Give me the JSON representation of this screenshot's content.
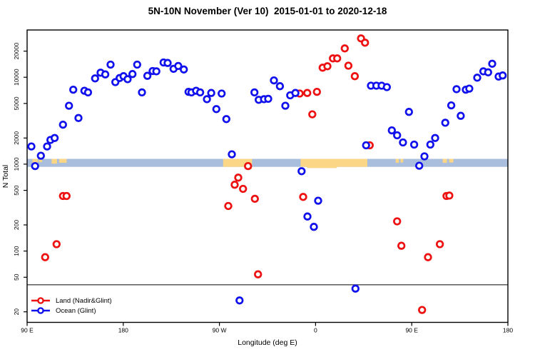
{
  "title": "5N-10N November (Ver 10)  2015-01-01 to 2020-12-18",
  "legend": {
    "items": [
      {
        "label": "Land (Nadir&Glint)",
        "color": "#ee1111"
      },
      {
        "label": "Ocean (Glint)",
        "color": "#1111ee"
      }
    ]
  },
  "chart_data": {
    "type": "scatter",
    "title": "5N-10N November (Ver 10)  2015-01-01 to 2020-12-18",
    "xlabel": "Longitude (deg E)",
    "ylabel": "N Total",
    "grid": false,
    "legend_position": "bottom-left",
    "x_axis": {
      "note": "longitude axis wraps eastward from 90E through 180, 90W, 0, 90E to 180; stored as continuous 90..540 deg",
      "range": [
        90,
        540
      ],
      "ticks": [
        {
          "pos": 90,
          "label": "90 E"
        },
        {
          "pos": 180,
          "label": "180"
        },
        {
          "pos": 270,
          "label": "90 W"
        },
        {
          "pos": 360,
          "label": "0"
        },
        {
          "pos": 450,
          "label": "90 E"
        },
        {
          "pos": 540,
          "label": "180"
        }
      ]
    },
    "y_axis": {
      "scale": "log",
      "range": [
        15,
        35000
      ],
      "ticks": [
        20,
        50,
        100,
        200,
        500,
        1000,
        2000,
        5000,
        10000,
        20000
      ]
    },
    "threshold_line": {
      "value": 41,
      "color": "#4a4a4a"
    },
    "band": {
      "comment": "horizontal strip near N=1000 showing ocean (blue) vs land (orange) longitudes",
      "value_from": 930,
      "value_to": 1150,
      "ocean_color": "#a9bedc",
      "land_color": "#fbd687",
      "land_patches": [
        {
          "from": 95,
          "to": 100,
          "frac": 0.55
        },
        {
          "from": 101,
          "to": 104,
          "frac": 0.4
        },
        {
          "from": 113,
          "to": 118,
          "frac": 0.6
        },
        {
          "from": 120,
          "to": 127,
          "frac": 0.5
        },
        {
          "from": 273.5,
          "to": 300.5,
          "frac": 1.0
        },
        {
          "from": 294,
          "to": 300.5,
          "frac": 1.3
        },
        {
          "from": 346,
          "to": 408.5,
          "frac": 1.0
        },
        {
          "from": 352,
          "to": 380,
          "frac": 1.15
        },
        {
          "from": 435,
          "to": 438,
          "frac": 0.5
        },
        {
          "from": 439.5,
          "to": 442,
          "frac": 0.45
        },
        {
          "from": 479,
          "to": 483,
          "frac": 0.5
        },
        {
          "from": 485,
          "to": 489,
          "frac": 0.45
        }
      ]
    },
    "series": [
      {
        "name": "Land (Nadir&Glint)",
        "color": "#ee1111",
        "points": [
          [
            106.9,
            85
          ],
          [
            117.6,
            120
          ],
          [
            123.6,
            430
          ],
          [
            126.9,
            430
          ],
          [
            278.3,
            330
          ],
          [
            284.3,
            580
          ],
          [
            287.6,
            700
          ],
          [
            292.1,
            520
          ],
          [
            296.8,
            950
          ],
          [
            303.2,
            400
          ],
          [
            306.1,
            54
          ],
          [
            345.1,
            6500
          ],
          [
            348.4,
            420
          ],
          [
            352.2,
            6600
          ],
          [
            356.9,
            3750
          ],
          [
            361.3,
            6800
          ],
          [
            366.6,
            12900
          ],
          [
            371.1,
            13400
          ],
          [
            376.2,
            16500
          ],
          [
            380.2,
            16500
          ],
          [
            387.3,
            21500
          ],
          [
            390.7,
            13600
          ],
          [
            396.7,
            10300
          ],
          [
            402.5,
            28000
          ],
          [
            406.3,
            25000
          ],
          [
            410.7,
            1650
          ],
          [
            436.3,
            220
          ],
          [
            440.3,
            115
          ],
          [
            459.7,
            21
          ],
          [
            465.2,
            85
          ],
          [
            476.3,
            120
          ],
          [
            482.5,
            430
          ],
          [
            485.2,
            435
          ]
        ]
      },
      {
        "name": "Ocean (Glint)",
        "color": "#1111ee",
        "points": [
          [
            94,
            1600
          ],
          [
            97.5,
            950
          ],
          [
            102.9,
            1250
          ],
          [
            108.7,
            1600
          ],
          [
            111.8,
            1900
          ],
          [
            115.8,
            2000
          ],
          [
            123.6,
            2850
          ],
          [
            129.2,
            4700
          ],
          [
            133.2,
            7200
          ],
          [
            138.1,
            3400
          ],
          [
            143.6,
            7000
          ],
          [
            147,
            6700
          ],
          [
            153.6,
            9700
          ],
          [
            158.8,
            11300
          ],
          [
            163.2,
            10800
          ],
          [
            168.1,
            14000
          ],
          [
            172.6,
            8800
          ],
          [
            176.6,
            9800
          ],
          [
            180.3,
            10300
          ],
          [
            184.1,
            9500
          ],
          [
            188.6,
            10900
          ],
          [
            193,
            14000
          ],
          [
            197.5,
            6700
          ],
          [
            202.6,
            10400
          ],
          [
            207.5,
            11800
          ],
          [
            211,
            11700
          ],
          [
            217.7,
            14800
          ],
          [
            221.5,
            14600
          ],
          [
            227.1,
            12500
          ],
          [
            231.5,
            13500
          ],
          [
            236.7,
            12300
          ],
          [
            241.1,
            6800
          ],
          [
            243.8,
            6700
          ],
          [
            248.2,
            7000
          ],
          [
            252,
            6700
          ],
          [
            258.3,
            5600
          ],
          [
            262.3,
            6600
          ],
          [
            267.1,
            4300
          ],
          [
            272.1,
            6500
          ],
          [
            276.5,
            3300
          ],
          [
            281.6,
            1300
          ],
          [
            288.8,
            27
          ],
          [
            302.8,
            6700
          ],
          [
            306.8,
            5500
          ],
          [
            311.7,
            5600
          ],
          [
            315.7,
            5650
          ],
          [
            321,
            9200
          ],
          [
            326.6,
            7900
          ],
          [
            331.7,
            4700
          ],
          [
            336.2,
            6200
          ],
          [
            341.1,
            6600
          ],
          [
            346.9,
            830
          ],
          [
            352.4,
            250
          ],
          [
            358.4,
            190
          ],
          [
            362.4,
            380
          ],
          [
            397.3,
            37
          ],
          [
            407.3,
            1650
          ],
          [
            411.8,
            8000
          ],
          [
            416.9,
            8000
          ],
          [
            421.8,
            8000
          ],
          [
            426.7,
            7700
          ],
          [
            431.4,
            2450
          ],
          [
            436.3,
            2150
          ],
          [
            441.8,
            1780
          ],
          [
            447.4,
            4000
          ],
          [
            452.3,
            1680
          ],
          [
            457,
            960
          ],
          [
            461.9,
            1230
          ],
          [
            467.4,
            1680
          ],
          [
            471.9,
            2000
          ],
          [
            481.4,
            3000
          ],
          [
            487,
            4750
          ],
          [
            491.9,
            7300
          ],
          [
            495.9,
            3600
          ],
          [
            500.6,
            7200
          ],
          [
            503.9,
            7400
          ],
          [
            511.3,
            9900
          ],
          [
            517,
            11700
          ],
          [
            521.5,
            11400
          ],
          [
            525.3,
            14300
          ],
          [
            531.3,
            10200
          ],
          [
            535.1,
            10500
          ]
        ]
      }
    ]
  }
}
